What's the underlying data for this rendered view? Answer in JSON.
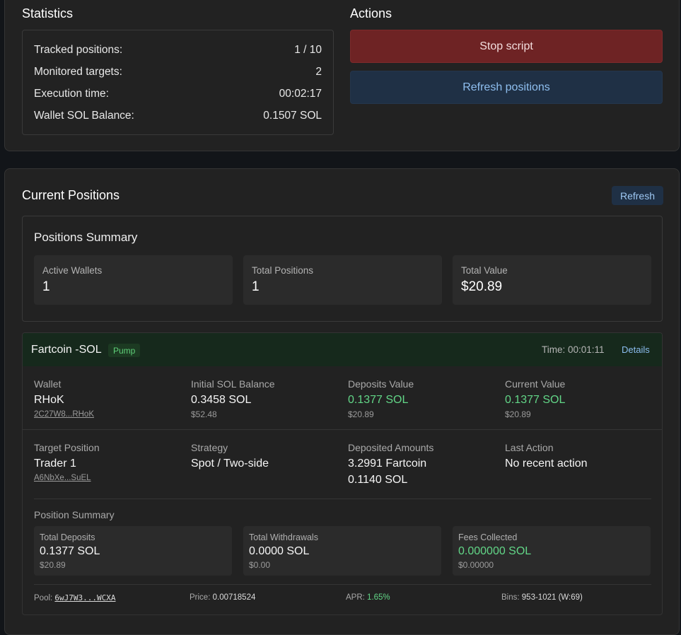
{
  "statistics": {
    "title": "Statistics",
    "rows": [
      {
        "label": "Tracked positions:",
        "value": "1 / 10"
      },
      {
        "label": "Monitored targets:",
        "value": "2"
      },
      {
        "label": "Execution time:",
        "value": "00:02:17"
      },
      {
        "label": "Wallet SOL Balance:",
        "value": "0.1507 SOL"
      }
    ]
  },
  "actions": {
    "title": "Actions",
    "stop_label": "Stop script",
    "refresh_label": "Refresh positions"
  },
  "current_positions": {
    "title": "Current Positions",
    "refresh_label": "Refresh",
    "summary": {
      "title": "Positions Summary",
      "metrics": [
        {
          "label": "Active Wallets",
          "value": "1"
        },
        {
          "label": "Total Positions",
          "value": "1"
        },
        {
          "label": "Total Value",
          "value": "$20.89"
        }
      ]
    },
    "position": {
      "name": "Fartcoin -SOL",
      "badge": "Pump",
      "time": "Time: 00:01:11",
      "details_label": "Details",
      "wallet": {
        "label": "Wallet",
        "value": "RHoK",
        "link": "2C27W8...RHoK"
      },
      "initial_balance": {
        "label": "Initial SOL Balance",
        "value": "0.3458 SOL",
        "sub": "$52.48"
      },
      "deposits_value": {
        "label": "Deposits Value",
        "value": "0.1377 SOL",
        "sub": "$20.89"
      },
      "current_value": {
        "label": "Current Value",
        "value": "0.1377 SOL",
        "sub": "$20.89"
      },
      "target": {
        "label": "Target Position",
        "value": "Trader 1",
        "link": "A6NbXe...SuEL"
      },
      "strategy": {
        "label": "Strategy",
        "value": "Spot / Two-side"
      },
      "deposited": {
        "label": "Deposited Amounts",
        "line1": "3.2991 Fartcoin",
        "line2": "0.1140 SOL"
      },
      "last_action": {
        "label": "Last Action",
        "value": "No recent action"
      },
      "position_summary": {
        "title": "Position Summary",
        "boxes": [
          {
            "label": "Total Deposits",
            "value": "0.1377 SOL",
            "sub": "$20.89"
          },
          {
            "label": "Total Withdrawals",
            "value": "0.0000 SOL",
            "sub": "$0.00"
          },
          {
            "label": "Fees Collected",
            "value": "0.000000 SOL",
            "sub": "$0.00000"
          }
        ]
      },
      "footer": {
        "pool_label": "Pool:",
        "pool_value": "6wJ7W3...WCXA",
        "price_label": "Price:",
        "price_value": "0.00718524",
        "apr_label": "APR:",
        "apr_value": "1.65%",
        "bins_label": "Bins:",
        "bins_value": "953-1021 (W:69)"
      }
    }
  },
  "colors": {
    "background": "#121519",
    "card": "#222222",
    "stop_button": "#6e2324",
    "refresh_button": "#1f3045",
    "positive": "#62d687",
    "position_header": "#16291c"
  }
}
